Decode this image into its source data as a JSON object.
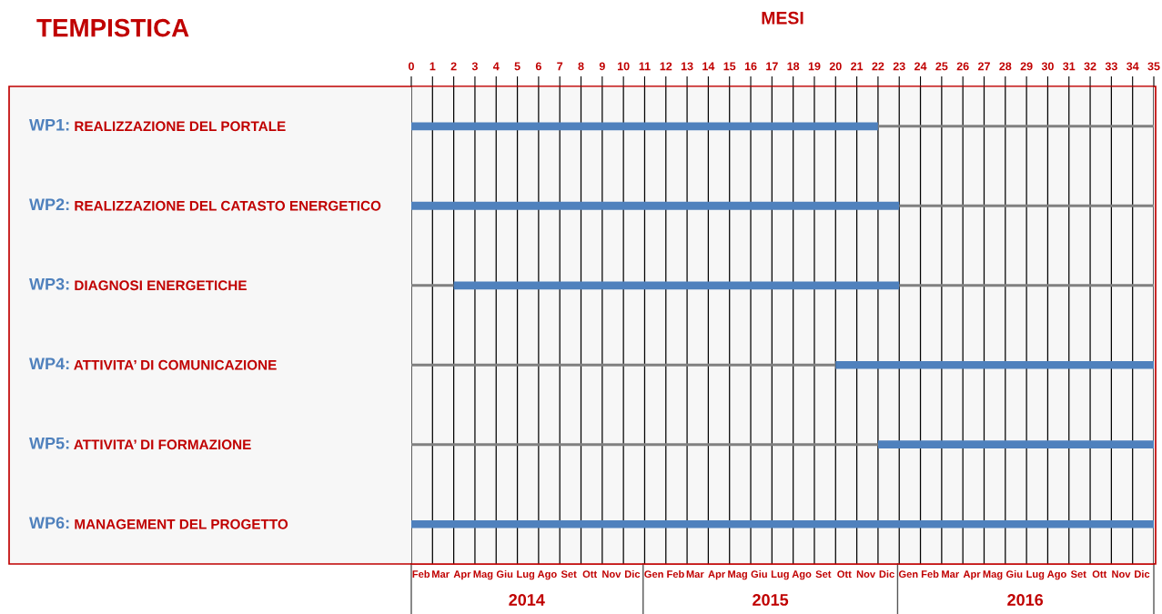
{
  "chart_data": {
    "type": "bar",
    "orientation": "horizontal",
    "title": "TEMPISTICA",
    "xlabel": "MESI",
    "categories": [
      "WP1: REALIZZAZIONE DEL PORTALE",
      "WP2: REALIZZAZIONE DEL CATASTO ENERGETICO",
      "WP3: DIAGNOSI ENERGETICHE",
      "WP4: ATTIVITA’ DI COMUNICAZIONE",
      "WP5: ATTIVITA’ DI FORMAZIONE",
      "WP6: MANAGEMENT DEL PROGETTO"
    ],
    "series": [
      {
        "color": "#808080",
        "values": [
          null,
          null,
          2,
          20,
          22,
          null
        ]
      },
      {
        "color": "#4f81bd",
        "values": [
          22,
          23,
          21,
          15,
          13,
          35
        ]
      },
      {
        "color": "#808080",
        "values": [
          13,
          12,
          12,
          null,
          null,
          null
        ]
      }
    ],
    "stacked": true,
    "xlim": [
      0,
      35
    ],
    "xticks": [
      0,
      1,
      2,
      3,
      4,
      5,
      6,
      7,
      8,
      9,
      10,
      11,
      12,
      13,
      14,
      15,
      16,
      17,
      18,
      19,
      20,
      21,
      22,
      23,
      24,
      25,
      26,
      27,
      28,
      29,
      30,
      31,
      32,
      33,
      34,
      35
    ],
    "x2lim": [
      "2014-02-01",
      "2017-01-01"
    ],
    "x2ticks": [
      {
        "value": "2014-02-15",
        "label": "Feb"
      },
      {
        "value": "2014-03-15",
        "label": "Mar"
      },
      {
        "value": "2014-04-15",
        "label": "Apr"
      },
      {
        "value": "2014-05-15",
        "label": "Mag"
      },
      {
        "value": "2014-06-15",
        "label": "Giu"
      },
      {
        "value": "2014-07-15",
        "label": "Lug"
      },
      {
        "value": "2014-08-15",
        "label": "Ago"
      },
      {
        "value": "2014-09-15",
        "label": "Set"
      },
      {
        "value": "2014-10-15",
        "label": "Ott"
      },
      {
        "value": "2014-11-15",
        "label": "Nov"
      },
      {
        "value": "2014-12-15",
        "label": "Dic"
      },
      {
        "value": "2015-01-15",
        "label": "Gen"
      },
      {
        "value": "2015-02-15",
        "label": "Feb"
      },
      {
        "value": "2015-03-15",
        "label": "Mar"
      },
      {
        "value": "2015-04-15",
        "label": "Apr"
      },
      {
        "value": "2015-05-15",
        "label": "Mag"
      },
      {
        "value": "2015-06-15",
        "label": "Giu"
      },
      {
        "value": "2015-07-15",
        "label": "Lug"
      },
      {
        "value": "2015-08-15",
        "label": "Ago"
      },
      {
        "value": "2015-09-15",
        "label": "Set"
      },
      {
        "value": "2015-10-15",
        "label": "Ott"
      },
      {
        "value": "2015-11-15",
        "label": "Nov"
      },
      {
        "value": "2015-12-15",
        "label": "Dic"
      },
      {
        "value": "2016-01-15",
        "label": "Gen"
      },
      {
        "value": "2016-02-15",
        "label": "Feb"
      },
      {
        "value": "2016-03-15",
        "label": "Mar"
      },
      {
        "value": "2016-04-15",
        "label": "Apr"
      },
      {
        "value": "2016-05-15",
        "label": "Mag"
      },
      {
        "value": "2016-06-15",
        "label": "Giu"
      },
      {
        "value": "2016-07-15",
        "label": "Lug"
      },
      {
        "value": "2016-08-15",
        "label": "Ago"
      },
      {
        "value": "2016-09-15",
        "label": "Set"
      },
      {
        "value": "2016-10-15",
        "label": "Ott"
      },
      {
        "value": "2016-11-15",
        "label": "Nov"
      },
      {
        "value": "2016-12-15",
        "label": "Dic"
      }
    ],
    "annotations": [
      "2014",
      "2015",
      "2016"
    ],
    "grid": "x"
  }
}
